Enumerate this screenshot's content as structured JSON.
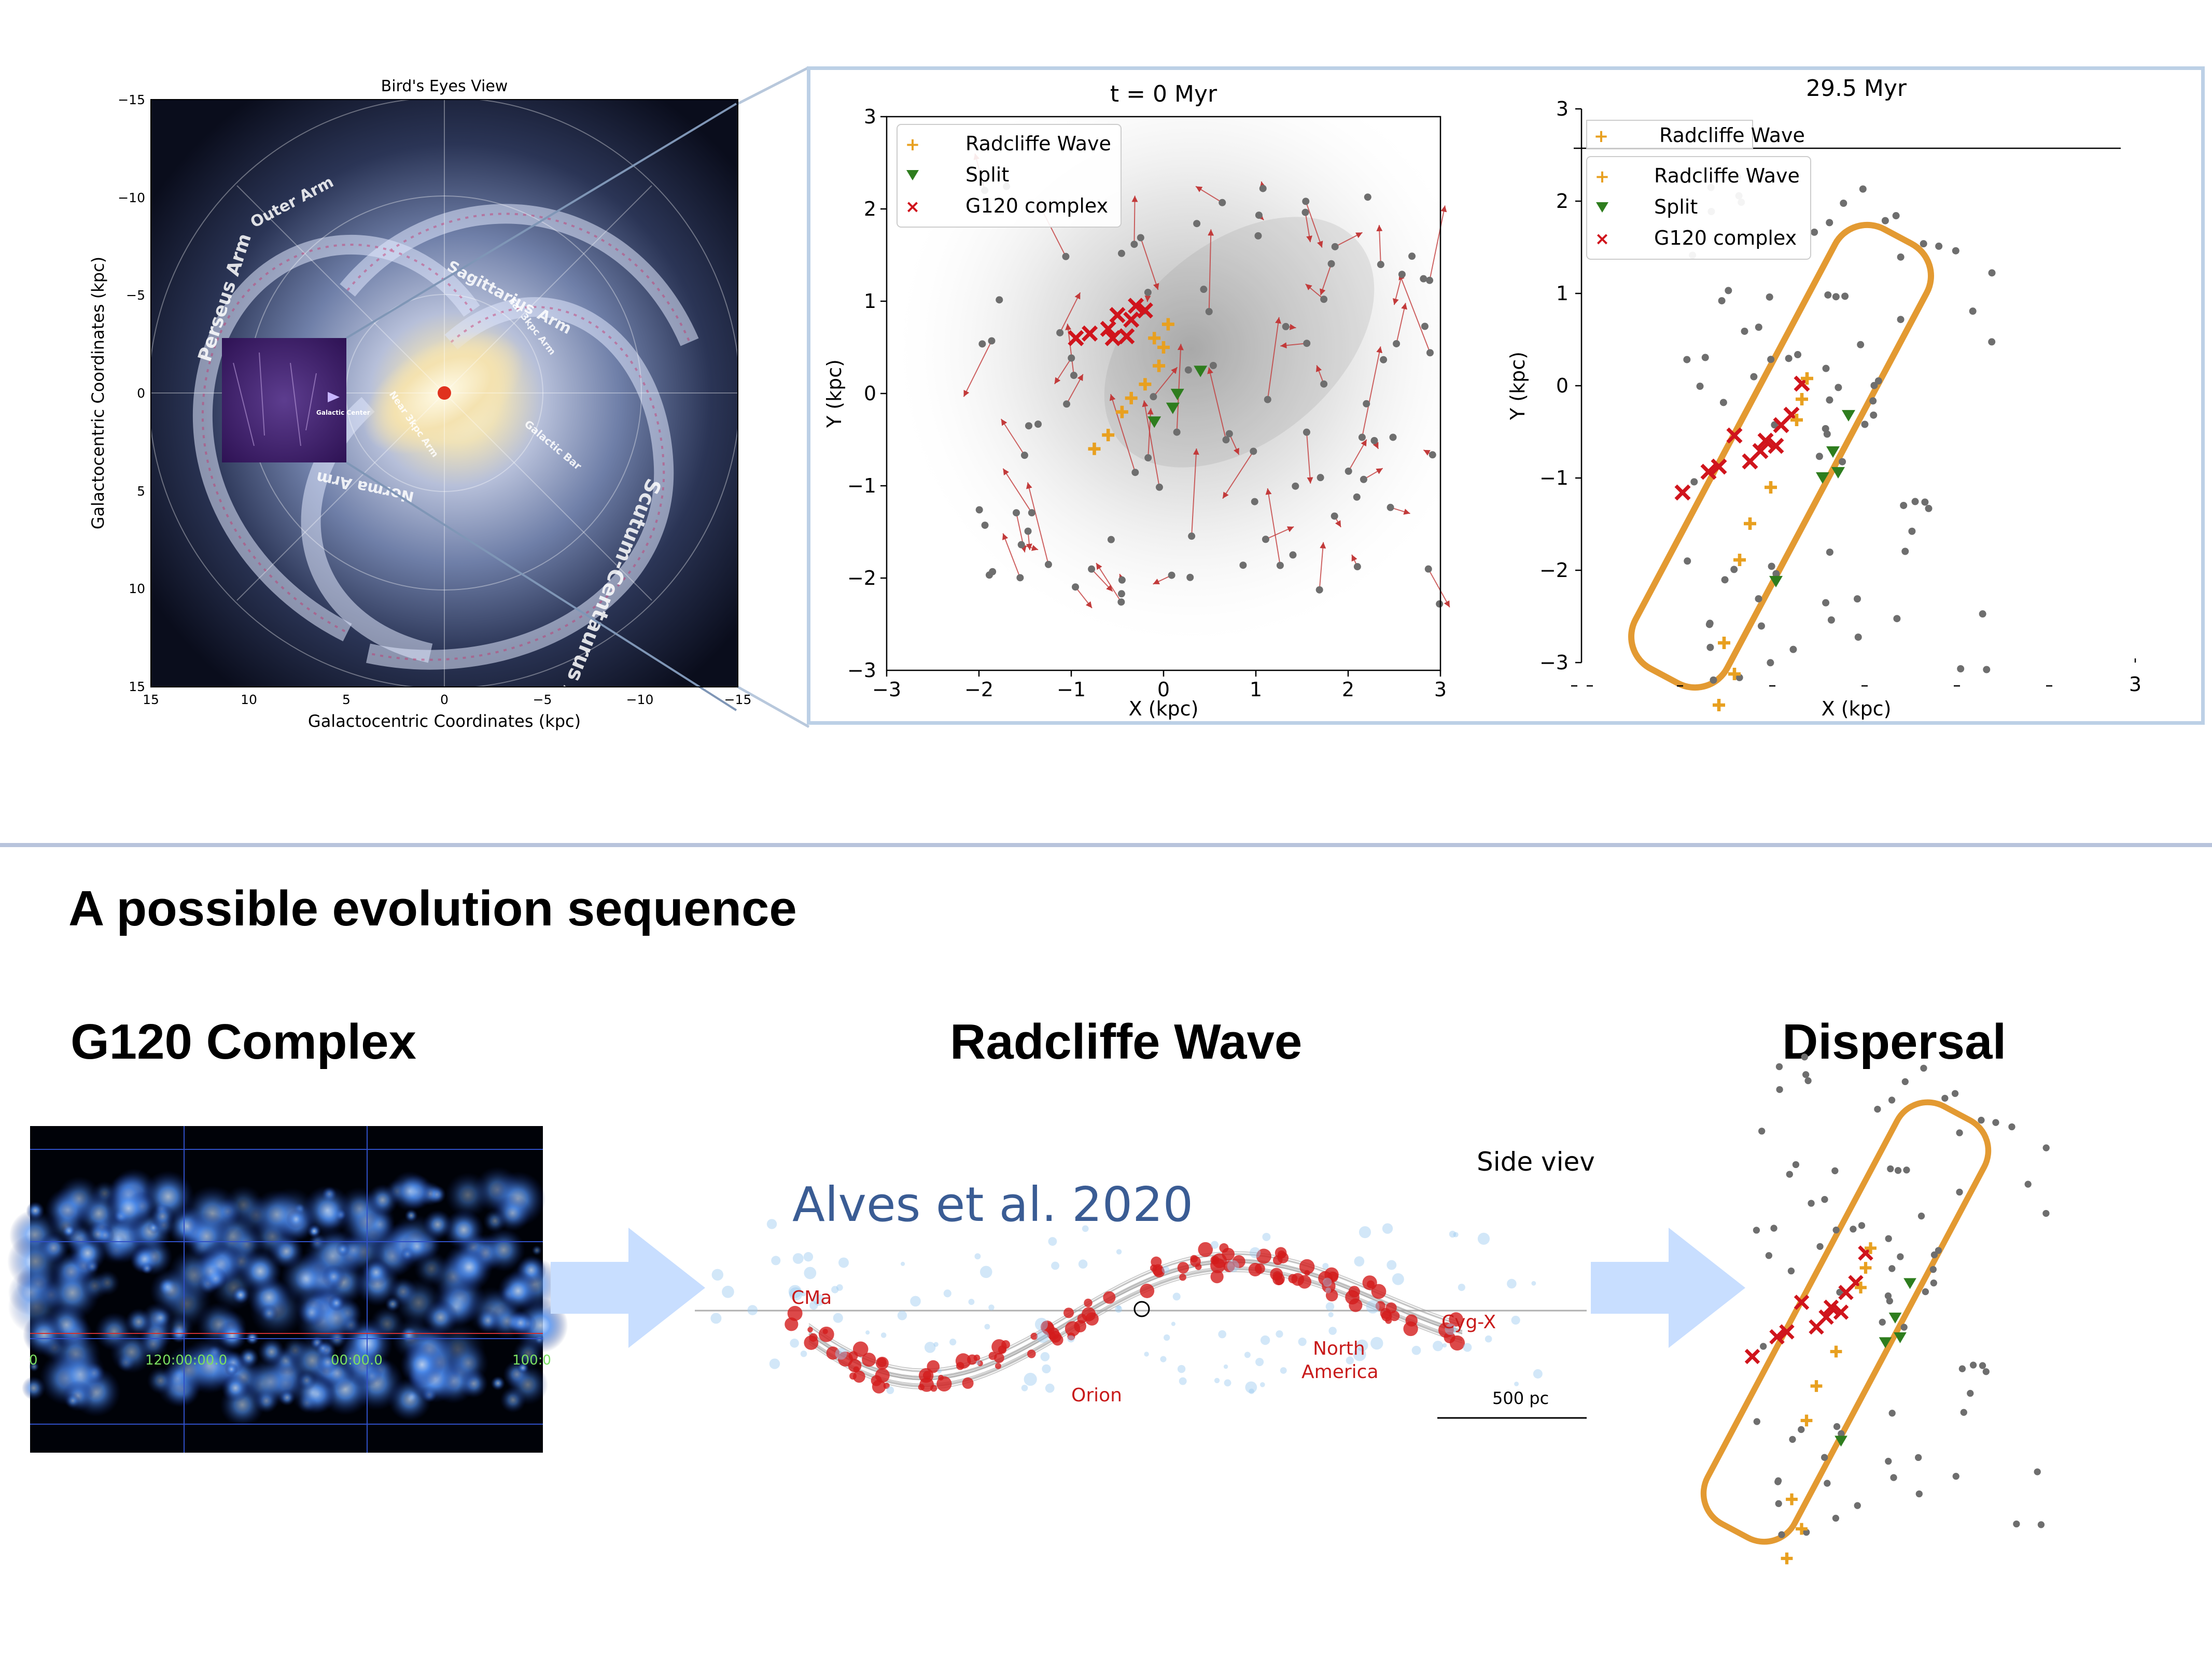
{
  "top": {
    "milky_way": {
      "title": "Bird's Eyes View",
      "xlabel": "Galactocentric Coordinates (kpc)",
      "ylabel": "Galactocentric Coordinates (kpc)",
      "x_ticks": [
        "15",
        "10",
        "5",
        "0",
        "−5",
        "−10",
        "−15"
      ],
      "y_ticks": [
        "−15",
        "−10",
        "−5",
        "0",
        "5",
        "10",
        "15"
      ],
      "arm_labels": [
        "Outer Arm",
        "Perseus Arm",
        "Sagittarius Arm",
        "Far 3kpc Arm",
        "Near 3kpc Arm",
        "Galactic Bar",
        "Norma Arm",
        "Scutum-Centaurus Arm"
      ],
      "inset_label": "Galactic Center"
    },
    "panel_t0": {
      "title": "t = 0 Myr",
      "xlabel": "X (kpc)",
      "ylabel": "Y (kpc)",
      "x_ticks": [
        "−3",
        "−2",
        "−1",
        "0",
        "1",
        "2",
        "3"
      ],
      "y_ticks": [
        "3",
        "2",
        "1",
        "0",
        "−1",
        "−2",
        "−3"
      ],
      "legend": [
        "Radcliffe Wave",
        "Split",
        "G120 complex"
      ]
    },
    "panel_t29": {
      "title": "29.5 Myr",
      "xlabel": "X (kpc)",
      "ylabel": "Y (kpc)",
      "y_ticks": [
        "3",
        "2",
        "1",
        "0",
        "−1",
        "−2",
        "−3"
      ],
      "x_tick_right": "3",
      "legend_top": "Radcliffe Wave",
      "legend": [
        "Radcliffe Wave",
        "Split",
        "G120 complex"
      ]
    }
  },
  "bottom": {
    "section_title": "A possible evolution sequence",
    "stages": [
      "G120 Complex",
      "Radcliffe Wave",
      "Dispersal"
    ],
    "g120_ticks": [
      "0",
      "120:00:00.0",
      "00:00.0",
      "100:0"
    ],
    "wave": {
      "citation": "Alves et al. 2020",
      "side_view": "Side viev",
      "region_labels": [
        "CMa",
        "Orion",
        "North America",
        "Cyg-X"
      ],
      "north_line1": "North",
      "north_line2": "America",
      "scale_label": "500 pc"
    }
  },
  "colors": {
    "radcliffe": "#e8a020",
    "split": "#2e7d1e",
    "g120": "#d0141c",
    "grey_points": "#6e6e6e",
    "box": "#e39a32",
    "arrow_fill": "#c8deff",
    "frame": "#bcd0e6",
    "citation": "#3a5c94"
  }
}
